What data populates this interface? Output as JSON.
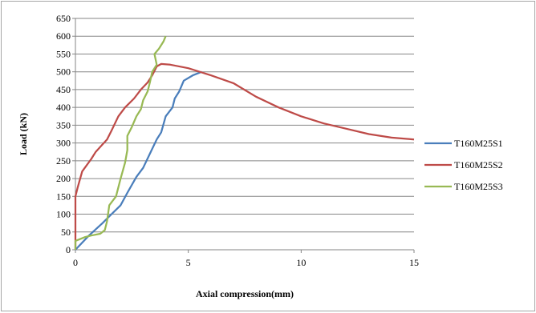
{
  "chart_data": {
    "type": "line",
    "xlabel": "Axial compression(mm)",
    "ylabel": "Load (kN)",
    "xlim": [
      0,
      15
    ],
    "ylim": [
      0,
      650
    ],
    "xticks": [
      0,
      5,
      10,
      15
    ],
    "yticks": [
      0,
      50,
      100,
      150,
      200,
      250,
      300,
      350,
      400,
      450,
      500,
      550,
      600,
      650
    ],
    "grid": "horizontal",
    "legend_position": "right",
    "series": [
      {
        "name": "T160M25S1",
        "color": "#4a7ebb",
        "points": [
          [
            0,
            0
          ],
          [
            0.6,
            40
          ],
          [
            1.2,
            75
          ],
          [
            1.6,
            100
          ],
          [
            2.0,
            125
          ],
          [
            2.3,
            160
          ],
          [
            2.7,
            205
          ],
          [
            3.0,
            230
          ],
          [
            3.3,
            270
          ],
          [
            3.6,
            310
          ],
          [
            3.8,
            330
          ],
          [
            4.0,
            375
          ],
          [
            4.3,
            400
          ],
          [
            4.4,
            425
          ],
          [
            4.6,
            445
          ],
          [
            4.8,
            475
          ],
          [
            5.2,
            490
          ],
          [
            5.6,
            500
          ]
        ]
      },
      {
        "name": "T160M25S2",
        "color": "#be4b48",
        "points": [
          [
            0,
            0
          ],
          [
            0,
            150
          ],
          [
            0.1,
            175
          ],
          [
            0.3,
            220
          ],
          [
            0.7,
            255
          ],
          [
            0.9,
            275
          ],
          [
            1.4,
            310
          ],
          [
            1.6,
            335
          ],
          [
            1.9,
            375
          ],
          [
            2.2,
            400
          ],
          [
            2.6,
            425
          ],
          [
            2.9,
            450
          ],
          [
            3.2,
            470
          ],
          [
            3.4,
            490
          ],
          [
            3.6,
            515
          ],
          [
            3.8,
            522
          ],
          [
            4.2,
            520
          ],
          [
            5.0,
            510
          ],
          [
            6.0,
            490
          ],
          [
            7.0,
            468
          ],
          [
            8.0,
            430
          ],
          [
            9.0,
            400
          ],
          [
            10.0,
            375
          ],
          [
            11.0,
            355
          ],
          [
            12.0,
            340
          ],
          [
            13.0,
            325
          ],
          [
            14.0,
            315
          ],
          [
            15.0,
            310
          ]
        ]
      },
      {
        "name": "T160M25S3",
        "color": "#98b954",
        "points": [
          [
            0,
            0
          ],
          [
            0,
            25
          ],
          [
            0.4,
            35
          ],
          [
            0.7,
            40
          ],
          [
            1.1,
            45
          ],
          [
            1.3,
            55
          ],
          [
            1.4,
            80
          ],
          [
            1.5,
            125
          ],
          [
            1.8,
            150
          ],
          [
            2.0,
            200
          ],
          [
            2.2,
            245
          ],
          [
            2.3,
            280
          ],
          [
            2.3,
            320
          ],
          [
            2.5,
            345
          ],
          [
            2.7,
            375
          ],
          [
            2.9,
            395
          ],
          [
            3.0,
            420
          ],
          [
            3.2,
            445
          ],
          [
            3.3,
            470
          ],
          [
            3.4,
            500
          ],
          [
            3.6,
            520
          ],
          [
            3.5,
            550
          ],
          [
            3.7,
            565
          ],
          [
            3.9,
            585
          ],
          [
            4.0,
            600
          ]
        ]
      }
    ]
  }
}
